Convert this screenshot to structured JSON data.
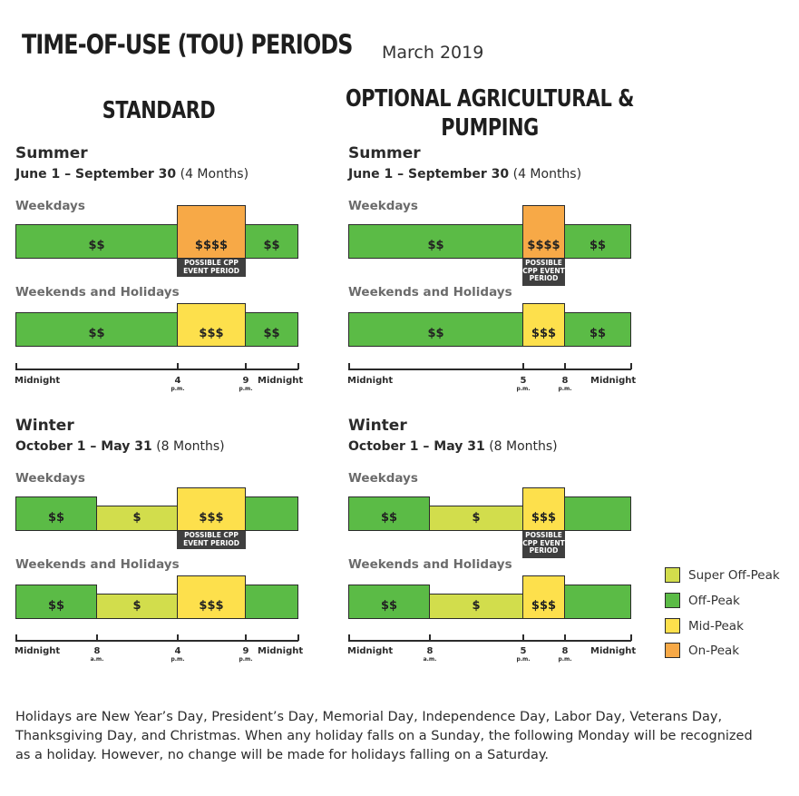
{
  "header": {
    "title": "TIME-OF-USE (TOU) PERIODS",
    "date": "March 2019"
  },
  "columns": {
    "standard": {
      "title": "STANDARD"
    },
    "agri": {
      "title_line1": "OPTIONAL AGRICULTURAL &",
      "title_line2": "PUMPING"
    }
  },
  "summer": {
    "name": "Summer",
    "dates": "June 1 – September 30",
    "duration": "(4 Months)"
  },
  "winter": {
    "name": "Winter",
    "dates": "October 1 – May 31",
    "duration": "(8 Months)"
  },
  "day_types": {
    "weekdays": "Weekdays",
    "weekends": "Weekends and Holidays"
  },
  "cpp": {
    "line1": "POSSIBLE CPP",
    "line2": "EVENT PERIOD",
    "w1": "POSSIBLE",
    "w2": "CPP EVENT",
    "w3": "PERIOD"
  },
  "prices": {
    "off": "$$",
    "super": "$",
    "mid": "$$$",
    "on": "$$$$"
  },
  "ticks": {
    "midnight": "Midnight",
    "am": "a.m.",
    "pm": "p.m.",
    "h8": "8",
    "h4": "4",
    "h9": "9",
    "h5": "5"
  },
  "legend": [
    {
      "label": "Super Off-Peak",
      "color": "#d2dd4c"
    },
    {
      "label": "Off-Peak",
      "color": "#5bbb46"
    },
    {
      "label": "Mid-Peak",
      "color": "#fde04c"
    },
    {
      "label": "On-Peak",
      "color": "#f7a947"
    }
  ],
  "footnote": "Holidays are New Year’s Day, President’s Day, Memorial Day, Independence Day, Labor Day, Veterans Day, Thanksgiving Day, and Christmas. When any holiday falls on a Sunday, the following Monday will be recognized as a holiday. However, no change will be made for holidays falling on a Saturday."
}
